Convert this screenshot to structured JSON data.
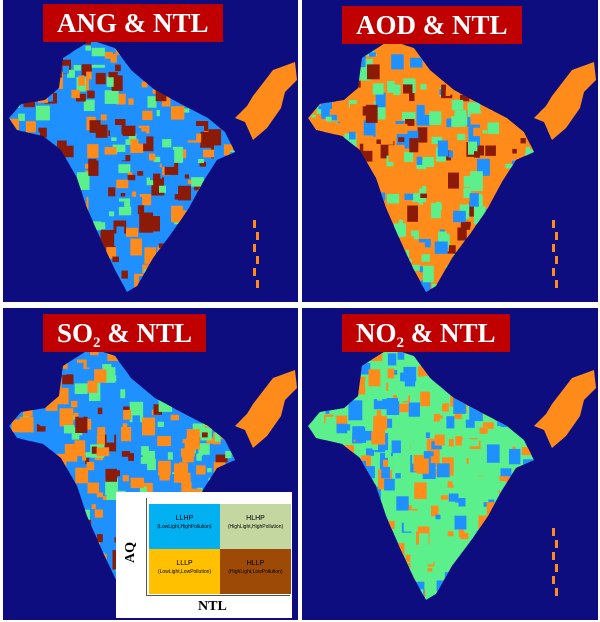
{
  "panels": [
    {
      "id": "ang",
      "title_main": "ANG & NTL",
      "title_sub": ""
    },
    {
      "id": "aod",
      "title_main": "AOD & NTL",
      "title_sub": ""
    },
    {
      "id": "so2",
      "title_main": "SO",
      "title_sub": "2",
      "title_rest": " & NTL"
    },
    {
      "id": "no2",
      "title_main": "NO",
      "title_sub": "2",
      "title_rest": " & NTL"
    }
  ],
  "legend": {
    "y_axis": "AQ",
    "x_axis": "NTL",
    "cells": [
      {
        "code": "LLHP",
        "desc": "(LowLight,HighPollution)",
        "color": "#00b0f0"
      },
      {
        "code": "HLHP",
        "desc": "(HighLight,HighPollution)",
        "color": "#c4d7a0"
      },
      {
        "code": "LLLP",
        "desc": "(LowLight,LowPollution)",
        "color": "#ffc000"
      },
      {
        "code": "HLLP",
        "desc": "(HighLight,LowPollution)",
        "color": "#9c4a06"
      }
    ]
  },
  "colors": {
    "background": "#0d0d80",
    "llhp": "#1e90ff",
    "hlhp": "#5cf08c",
    "lllp": "#ff8c1a",
    "hllp": "#8b1a06"
  }
}
